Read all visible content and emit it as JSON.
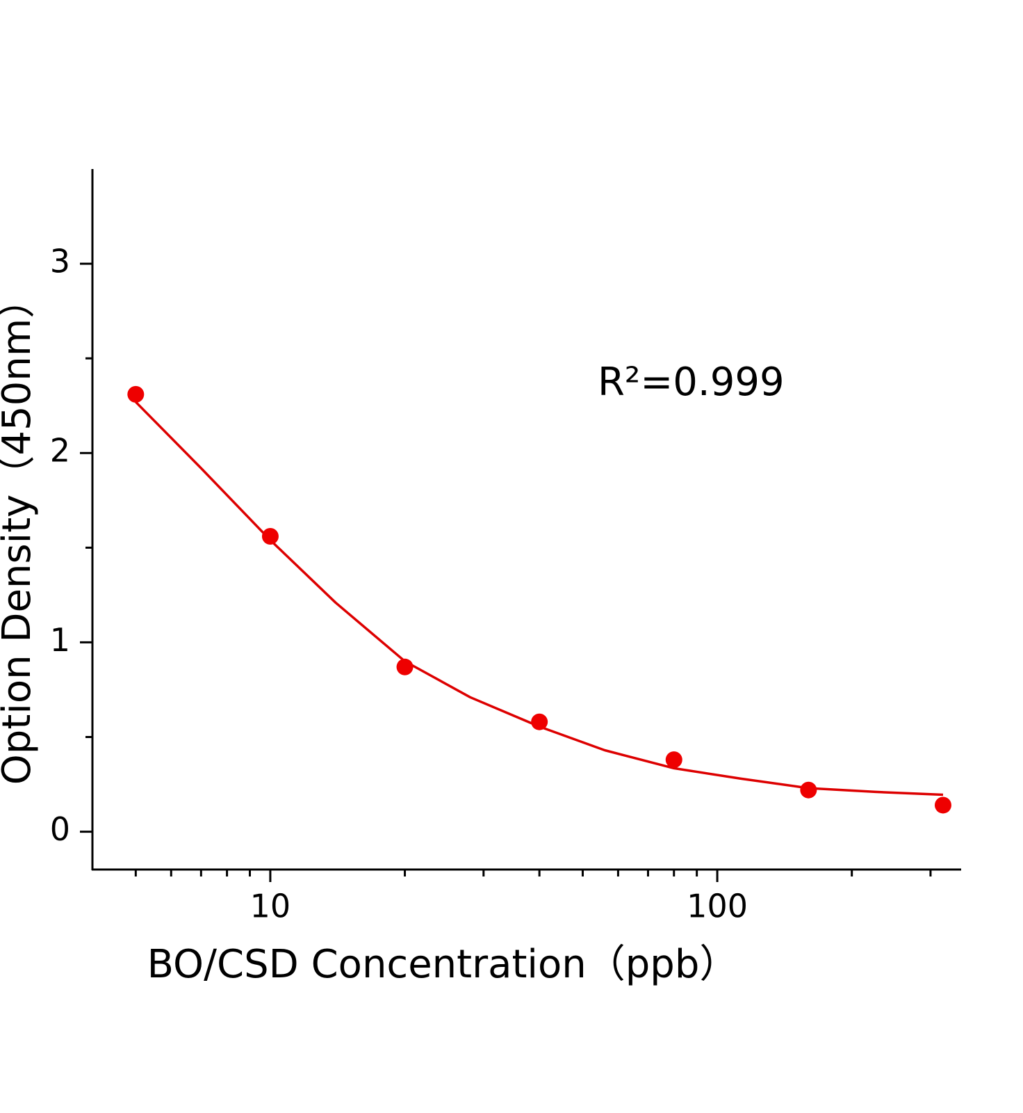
{
  "chart_data": {
    "type": "scatter",
    "x_label": "BO/CSD Concentration（ppb）",
    "y_label": "Option Density（450nm）",
    "annotation": "R²=0.999",
    "x_scale": "log",
    "xlim": [
      4,
      350
    ],
    "ylim": [
      -0.2,
      3.5
    ],
    "xticks": [
      10,
      100
    ],
    "x_minor_ticks": [
      5,
      6,
      7,
      8,
      9,
      20,
      30,
      40,
      50,
      60,
      70,
      80,
      90,
      200,
      300
    ],
    "yticks": [
      0,
      1,
      2,
      3
    ],
    "y_minor_ticks": [
      0.5,
      1.5,
      2.5
    ],
    "series": [
      {
        "color": "#ee0000",
        "marker": "circle",
        "x": [
          5,
          10,
          20,
          40,
          80,
          160,
          320
        ],
        "values": [
          2.31,
          1.56,
          0.87,
          0.58,
          0.38,
          0.22,
          0.14
        ]
      },
      {
        "color": "#dd0000",
        "marker": "line",
        "x": [
          5,
          7,
          10,
          14,
          20,
          28,
          40,
          56,
          80,
          113,
          160,
          226,
          320
        ],
        "values": [
          2.27,
          1.92,
          1.54,
          1.21,
          0.9,
          0.71,
          0.555,
          0.43,
          0.335,
          0.28,
          0.23,
          0.21,
          0.195
        ]
      }
    ]
  }
}
